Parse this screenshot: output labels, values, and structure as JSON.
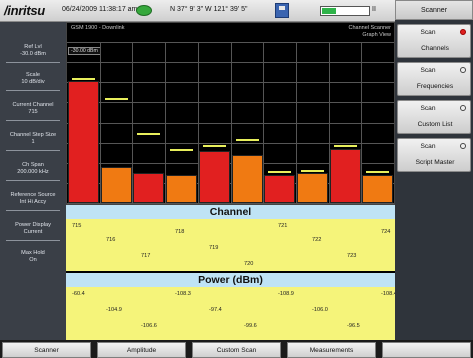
{
  "header": {
    "logo": "/inritsu",
    "datetime": "06/24/2009 11:38:17 am",
    "gps_coords": "N 37° 9' 3\" W 121° 39' 5\"",
    "battery_label": "II"
  },
  "plot": {
    "mode_label": "GSM 1900 - Downlink",
    "view_title_1": "Channel Scanner",
    "view_title_2": "Graph View",
    "ref_marker": "-30.00 dBm"
  },
  "left_params": [
    {
      "label": "Ref Lvl",
      "value": "-30.0 dBm"
    },
    {
      "label": "Scale",
      "value": "10 dB/div"
    },
    {
      "label": "Current Channel",
      "value": "715"
    },
    {
      "label": "Channel Step Size",
      "value": "1"
    },
    {
      "label": "Ch Span",
      "value": "200.000 kHz"
    },
    {
      "label": "Reference Source",
      "value": "Int Hi Accy"
    },
    {
      "label": "Power Display",
      "value": "Current"
    },
    {
      "label": "Max Hold",
      "value": "On"
    }
  ],
  "bars": [
    {
      "power": 60.4,
      "maxhold": 62.0,
      "color": "#e12020"
    },
    {
      "power": 18.0,
      "maxhold": 52.0,
      "color": "#f07a12"
    },
    {
      "power": 15.0,
      "maxhold": 35.0,
      "color": "#e12020"
    },
    {
      "power": 14.0,
      "maxhold": 27.0,
      "color": "#f07a12"
    },
    {
      "power": 26.0,
      "maxhold": 29.0,
      "color": "#e12020"
    },
    {
      "power": 24.0,
      "maxhold": 32.0,
      "color": "#f07a12"
    },
    {
      "power": 14.0,
      "maxhold": 16.0,
      "color": "#e12020"
    },
    {
      "power": 15.0,
      "maxhold": 16.5,
      "color": "#f07a12"
    },
    {
      "power": 27.0,
      "maxhold": 29.0,
      "color": "#e12020"
    },
    {
      "power": 14.0,
      "maxhold": 16.0,
      "color": "#f07a12"
    }
  ],
  "channel": {
    "title": "Channel",
    "values": [
      "715",
      "716",
      "717",
      "718",
      "719",
      "720",
      "721",
      "722",
      "723",
      "724"
    ]
  },
  "power": {
    "title": "Power (dBm)",
    "values": [
      "-60.4",
      "-104.9",
      "-106.6",
      "-108.3",
      "-97.4",
      "-99.6",
      "-108.9",
      "-106.0",
      "-96.5",
      "-108.4"
    ]
  },
  "menu": {
    "title": "Scanner",
    "softkeys": [
      {
        "top": "Scan",
        "bottom": "Channels",
        "selected": true
      },
      {
        "top": "Scan",
        "bottom": "Frequencies",
        "selected": false
      },
      {
        "top": "Scan",
        "bottom": "Custom List",
        "selected": false
      },
      {
        "top": "Scan",
        "bottom": "Script Master",
        "selected": false
      }
    ]
  },
  "bottom_menu": [
    "Scanner",
    "Amplitude",
    "Custom Scan",
    "Measurements",
    ""
  ]
}
